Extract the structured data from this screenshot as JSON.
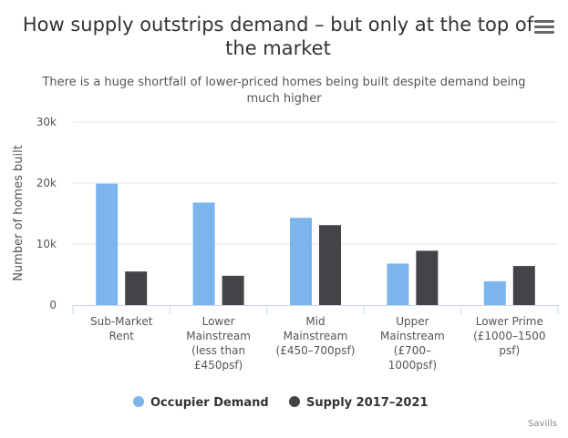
{
  "title": "How supply outstrips demand – but only at the top of the market",
  "subtitle": "There is a huge shortfall of lower-priced homes being built despite demand being much higher",
  "credit": "Savills",
  "menu_icon": "hamburger-menu-icon",
  "chart_data": {
    "type": "bar",
    "categories": [
      [
        "Sub-Market",
        "Rent"
      ],
      [
        "Lower",
        "Mainstream",
        "(less than",
        "£450psf)"
      ],
      [
        "Mid",
        "Mainstream",
        "(£450–700psf)"
      ],
      [
        "Upper",
        "Mainstream",
        "(£700–",
        "1000psf)"
      ],
      [
        "Lower Prime",
        "(£1000–1500",
        "psf)"
      ]
    ],
    "series": [
      {
        "name": "Occupier Demand",
        "color": "#7cb5ec",
        "values": [
          19900,
          16800,
          14300,
          6800,
          3900
        ]
      },
      {
        "name": "Supply 2017–2021",
        "color": "#434348",
        "values": [
          5500,
          4800,
          13100,
          8900,
          6400
        ]
      }
    ],
    "ylabel": "Number of homes built",
    "ylim": [
      0,
      30000
    ],
    "yticks": [
      {
        "value": 0,
        "label": "0"
      },
      {
        "value": 10000,
        "label": "10k"
      },
      {
        "value": 20000,
        "label": "20k"
      },
      {
        "value": 30000,
        "label": "30k"
      }
    ],
    "grid": true,
    "legend": "bottom-center"
  }
}
